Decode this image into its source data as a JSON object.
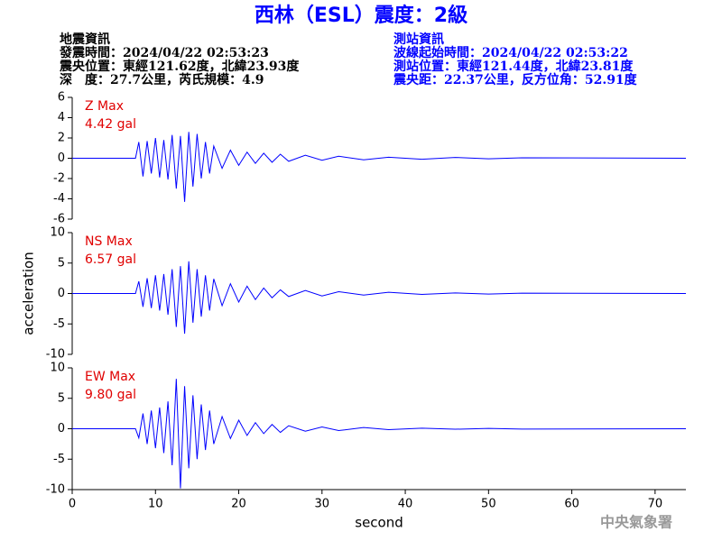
{
  "header": {
    "title": "西林（ESL）震度：2級",
    "left": [
      "地震資訊",
      "發震時間：2024/04/22 02:53:23",
      "震央位置：東經121.62度，北緯23.93度",
      "深　度：27.7公里，芮氏規模：4.9"
    ],
    "right": [
      "測站資訊",
      "波線起始時間：2024/04/22 02:53:22",
      "測站位置：東經121.44度，北緯23.81度",
      "震央距：22.37公里，反方位角：52.91度"
    ],
    "agency": "中央氣象署"
  },
  "chart_data": [
    {
      "type": "line",
      "label": "Z Max",
      "max_label": "4.42 gal",
      "color": "#0000ff",
      "xlim": [
        0,
        73.7
      ],
      "ylim": [
        -6,
        6
      ],
      "yticks": [
        -6,
        -4,
        -2,
        0,
        2,
        4,
        6
      ],
      "x": [
        0,
        7.6,
        8,
        8.5,
        9,
        9.5,
        10,
        10.5,
        11,
        11.5,
        12,
        12.5,
        13,
        13.5,
        14,
        14.5,
        15,
        15.5,
        16,
        16.5,
        17,
        18,
        19,
        20,
        21,
        22,
        23,
        24,
        25,
        26,
        28,
        30,
        32,
        35,
        38,
        42,
        46,
        50,
        54,
        73.7
      ],
      "values": [
        0,
        0,
        1.6,
        -1.8,
        1.7,
        -1.5,
        2.0,
        -1.9,
        1.8,
        -2.1,
        2.3,
        -3.0,
        2.2,
        -4.3,
        2.6,
        -2.8,
        2.4,
        -2.0,
        1.6,
        -1.5,
        1.2,
        -1.0,
        0.8,
        -0.7,
        0.6,
        -0.5,
        0.5,
        -0.4,
        0.4,
        -0.3,
        0.3,
        -0.2,
        0.2,
        -0.15,
        0.1,
        -0.1,
        0.08,
        -0.06,
        0.05,
        0
      ]
    },
    {
      "type": "line",
      "label": "NS Max",
      "max_label": "6.57 gal",
      "color": "#0000ff",
      "ylabel": "acceleration",
      "xlim": [
        0,
        73.7
      ],
      "ylim": [
        -10,
        10
      ],
      "yticks": [
        -10,
        -5,
        0,
        5,
        10
      ],
      "x": [
        0,
        7.6,
        8,
        8.5,
        9,
        9.5,
        10,
        10.5,
        11,
        11.5,
        12,
        12.5,
        13,
        13.5,
        14,
        14.5,
        15,
        15.5,
        16,
        16.5,
        17,
        18,
        19,
        20,
        21,
        22,
        23,
        24,
        25,
        26,
        28,
        30,
        32,
        35,
        38,
        42,
        46,
        50,
        54,
        73.7
      ],
      "values": [
        0,
        0,
        2.0,
        -2.2,
        2.5,
        -2.4,
        3.0,
        -2.8,
        3.2,
        -3.5,
        4.0,
        -5.5,
        4.5,
        -6.6,
        5.3,
        -4.8,
        4.0,
        -3.8,
        3.0,
        -2.8,
        2.4,
        -2.0,
        1.6,
        -1.4,
        1.2,
        -1.0,
        0.9,
        -0.7,
        0.6,
        -0.5,
        0.5,
        -0.4,
        0.3,
        -0.25,
        0.2,
        -0.15,
        0.1,
        -0.1,
        0.06,
        0
      ]
    },
    {
      "type": "line",
      "label": "EW Max",
      "max_label": "9.80 gal",
      "color": "#0000ff",
      "xlabel": "second",
      "xlim": [
        0,
        73.7
      ],
      "xticks": [
        0,
        10,
        20,
        30,
        40,
        50,
        60,
        70
      ],
      "ylim": [
        -10,
        10
      ],
      "yticks": [
        -10,
        -5,
        0,
        5,
        10
      ],
      "x": [
        0,
        7.6,
        8,
        8.5,
        9,
        9.5,
        10,
        10.5,
        11,
        11.5,
        12,
        12.5,
        13,
        13.5,
        14,
        14.5,
        15,
        15.5,
        16,
        16.5,
        17,
        18,
        19,
        20,
        21,
        22,
        23,
        24,
        25,
        26,
        28,
        30,
        32,
        35,
        38,
        42,
        46,
        50,
        54,
        73.7
      ],
      "values": [
        0,
        0,
        -1.5,
        2.5,
        -2.5,
        3.0,
        -3.2,
        3.5,
        -4.0,
        4.5,
        -6.0,
        8.2,
        -9.8,
        7.0,
        -6.5,
        5.5,
        -5.0,
        4.0,
        -3.5,
        3.0,
        -2.5,
        2.0,
        -1.6,
        1.4,
        -1.1,
        1.0,
        -0.8,
        0.7,
        -0.6,
        0.5,
        -0.4,
        0.3,
        -0.3,
        0.2,
        -0.15,
        0.1,
        -0.08,
        0.06,
        -0.05,
        0
      ]
    }
  ]
}
